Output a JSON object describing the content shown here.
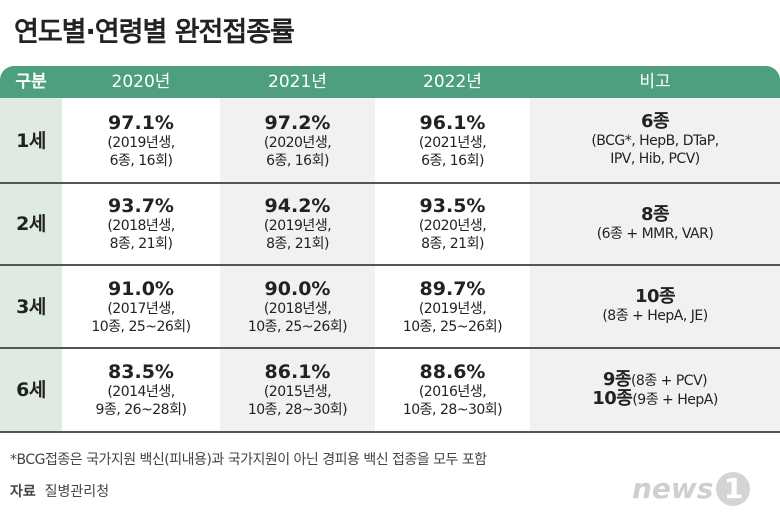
{
  "title": "연도별·연령별 완전접종률",
  "table": {
    "header": [
      "구분",
      "2020년",
      "2021년",
      "2022년",
      "비고"
    ],
    "rows": [
      {
        "age": "1세",
        "cells": [
          {
            "rate": "97.1%",
            "detail": [
              "(2019년생,",
              "6종, 16회)"
            ]
          },
          {
            "rate": "97.2%",
            "detail": [
              "(2020년생,",
              "6종, 16회)"
            ]
          },
          {
            "rate": "96.1%",
            "detail": [
              "(2021년생,",
              "6종, 16회)"
            ]
          }
        ],
        "note": [
          {
            "bold": "6종",
            "text": null
          },
          {
            "bold": null,
            "text": "(BCG*, HepB, DTaP,"
          },
          {
            "bold": null,
            "text": "IPV, Hib, PCV)"
          }
        ]
      },
      {
        "age": "2세",
        "cells": [
          {
            "rate": "93.7%",
            "detail": [
              "(2018년생,",
              "8종, 21회)"
            ]
          },
          {
            "rate": "94.2%",
            "detail": [
              "(2019년생,",
              "8종, 21회)"
            ]
          },
          {
            "rate": "93.5%",
            "detail": [
              "(2020년생,",
              "8종, 21회)"
            ]
          }
        ],
        "note": [
          {
            "bold": "8종",
            "text": null
          },
          {
            "bold": null,
            "text": "(6종 + MMR, VAR)"
          }
        ]
      },
      {
        "age": "3세",
        "cells": [
          {
            "rate": "91.0%",
            "detail": [
              "(2017년생,",
              "10종, 25~26회)"
            ]
          },
          {
            "rate": "90.0%",
            "detail": [
              "(2018년생,",
              "10종, 25~26회)"
            ]
          },
          {
            "rate": "89.7%",
            "detail": [
              "(2019년생,",
              "10종, 25~26회)"
            ]
          }
        ],
        "note": [
          {
            "bold": "10종",
            "text": null
          },
          {
            "bold": null,
            "text": "(8종 + HepA, JE)"
          }
        ]
      },
      {
        "age": "6세",
        "cells": [
          {
            "rate": "83.5%",
            "detail": [
              "(2014년생,",
              "9종, 26~28회)"
            ]
          },
          {
            "rate": "86.1%",
            "detail": [
              "(2015년생,",
              "10종, 28~30회)"
            ]
          },
          {
            "rate": "88.6%",
            "detail": [
              "(2016년생,",
              "10종, 28~30회)"
            ]
          }
        ],
        "note": [
          {
            "bold": "9종",
            "text": "(8종 + PCV)"
          },
          {
            "bold": "10종",
            "text": "(9종 + HepA)"
          }
        ]
      }
    ]
  },
  "footnote": "*BCG접종은 국가지원 백신(피내용)과 국가지원이 아닌 경피용 백신 접종을 모두 포함",
  "source": {
    "label": "자료",
    "text": "질병관리청"
  },
  "logo": {
    "text": "news",
    "mark": "1"
  }
}
